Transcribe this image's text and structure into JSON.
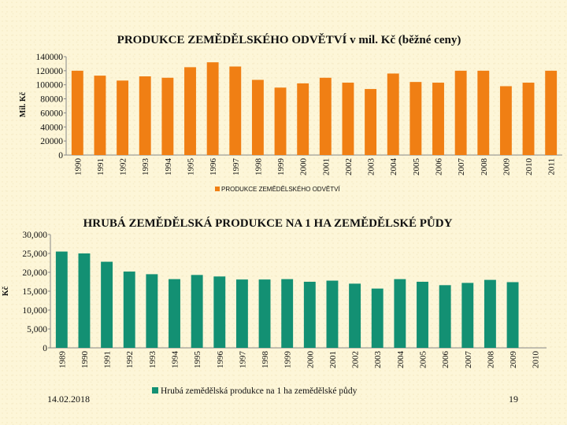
{
  "footer": {
    "date": "14.02.2018",
    "page": "19"
  },
  "colors": {
    "chart1_bar": "#f07f14",
    "chart2_bar": "#139073",
    "background": "#fdf6d8"
  },
  "chart_data": [
    {
      "type": "bar",
      "title": "PRODUKCE ZEMĚDĚLSKÉHO ODVĚTVÍ v mil. Kč (běžné ceny)",
      "ylabel": "Mil. Kč",
      "xlabel": "",
      "ylim": [
        0,
        140000
      ],
      "yticks": [
        "0",
        "20000",
        "40000",
        "60000",
        "80000",
        "100000",
        "120000",
        "140000"
      ],
      "legend": "bottom",
      "grid": false,
      "categories": [
        "1990",
        "1991",
        "1992",
        "1993",
        "1994",
        "1995",
        "1996",
        "1997",
        "1998",
        "1999",
        "2000",
        "2001",
        "2002",
        "2003",
        "2004",
        "2005",
        "2006",
        "2007",
        "2008",
        "2009",
        "2010",
        "2011"
      ],
      "series": [
        {
          "name": "PRODUKCE ZEMĚDĚLSKÉHO ODVĚTVÍ",
          "values": [
            120000,
            113000,
            106000,
            112000,
            110000,
            125000,
            132000,
            126000,
            107000,
            96000,
            102000,
            110000,
            103000,
            94000,
            116000,
            104000,
            103000,
            120000,
            120000,
            98000,
            103000,
            120000
          ]
        }
      ]
    },
    {
      "type": "bar",
      "title": "HRUBÁ ZEMĚDĚLSKÁ PRODUKCE NA 1 HA ZEMĚDĚLSKÉ PŮDY",
      "ylabel": "Kč",
      "xlabel": "",
      "ylim": [
        0,
        30000
      ],
      "yticks": [
        "0",
        "5,000",
        "10,000",
        "15,000",
        "20,000",
        "25,000",
        "30,000"
      ],
      "legend": "bottom",
      "grid": false,
      "categories": [
        "1989",
        "1990",
        "1991",
        "1992",
        "1993",
        "1994",
        "1995",
        "1996",
        "1997",
        "1998",
        "1999",
        "2000",
        "2001",
        "2002",
        "2003",
        "2004",
        "2005",
        "2006",
        "2007",
        "2008",
        "2009",
        "2010"
      ],
      "series": [
        {
          "name": "Hrubá zemědělská produkce na 1 ha zemědělské půdy",
          "values": [
            25500,
            25000,
            22800,
            20200,
            19500,
            18200,
            19300,
            18900,
            18100,
            18100,
            18200,
            17500,
            17800,
            17000,
            15700,
            18200,
            17500,
            16600,
            17200,
            18000,
            17400,
            null
          ]
        }
      ]
    }
  ]
}
